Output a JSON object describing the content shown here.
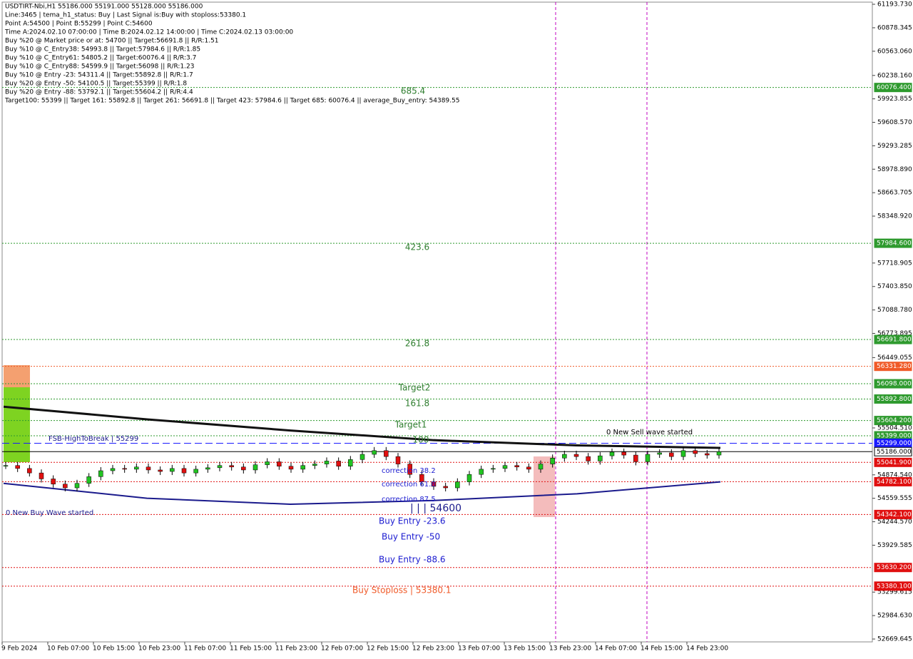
{
  "header": {
    "lines": [
      "USDTIRT-Nbi,H1   55186.000  55191.000  55128.000  55186.000",
      "Line:3465  | tema_h1_status: Buy  | Last Signal is:Buy with stoploss:53380.1",
      "Point A:54500  | Point B:55299  | Point C:54600",
      "Time A:2024.02.10 07:00:00  | Time B:2024.02.12 14:00:00  | Time C:2024.02.13 03:00:00",
      "Buy %20 @ Market price or at: 54700  || Target:56691.8  || R/R:1.51",
      "Buy %10 @ C_Entry38: 54993.8  || Target:57984.6  || R/R:1.85",
      "Buy %10 @ C_Entry61: 54805.2  || Target:60076.4  || R/R:3.7",
      "Buy %10 @ C_Entry88: 54599.9  || Target:56098  || R/R:1.23",
      "Buy %10 @ Entry -23: 54311.4  || Target:55892.8  || R/R:1.7",
      "Buy %20 @ Entry -50: 54100.5  || Target:55399  || R/R:1.8",
      "Buy %20 @ Entry -88: 53792.1  || Target:55604.2  || R/R:4.4",
      "Target100: 55399  || Target 161: 55892.8  || Target 261: 56691.8  || Target 423: 57984.6  || Target 685: 60076.4  || average_Buy_entry: 54389.55"
    ]
  },
  "chart_data": {
    "type": "candlestick",
    "closes": [
      55000,
      54960,
      54900,
      54820,
      54750,
      54700,
      54760,
      54850,
      54930,
      54960,
      54950,
      54980,
      54940,
      54920,
      54960,
      54900,
      54950,
      54970,
      55000,
      54980,
      54940,
      55010,
      55050,
      54990,
      54950,
      55000,
      55020,
      55060,
      54990,
      55080,
      55150,
      55200,
      55120,
      55020,
      54880,
      54780,
      54720,
      54700,
      54780,
      54880,
      54950,
      54960,
      55000,
      54980,
      54950,
      55020,
      55100,
      55150,
      55120,
      55060,
      55130,
      55180,
      55140,
      55050,
      55150,
      55170,
      55120,
      55200,
      55160,
      55140,
      55186
    ],
    "ma_black": [
      55790,
      55620,
      55470,
      55340,
      55270,
      55237
    ],
    "ma_blue": [
      54760,
      54560,
      54480,
      54530,
      54620,
      54780
    ],
    "ylim": [
      52631.3,
      61251.2
    ],
    "yticks": [
      {
        "value": 61193.73,
        "label": "61193.730"
      },
      {
        "value": 60878.345,
        "label": "60878.345"
      },
      {
        "value": 60563.06,
        "label": "60563.060"
      },
      {
        "value": 60238.16,
        "label": "60238.160"
      },
      {
        "value": 59923.855,
        "label": "59923.855"
      },
      {
        "value": 59608.57,
        "label": "59608.570"
      },
      {
        "value": 59293.285,
        "label": "59293.285"
      },
      {
        "value": 58978.89,
        "label": "58978.890"
      },
      {
        "value": 58663.705,
        "label": "58663.705"
      },
      {
        "value": 58348.92,
        "label": "58348.920"
      },
      {
        "value": 57718.905,
        "label": "57718.905"
      },
      {
        "value": 57403.85,
        "label": "57403.850"
      },
      {
        "value": 57088.78,
        "label": "57088.780"
      },
      {
        "value": 56773.895,
        "label": "56773.895"
      },
      {
        "value": 56449.055,
        "label": "56449.055"
      },
      {
        "value": 55504.51,
        "label": "55504.510"
      },
      {
        "value": 54874.54,
        "label": "54874.540"
      },
      {
        "value": 54559.555,
        "label": "54559.555"
      },
      {
        "value": 54244.57,
        "label": "54244.570"
      },
      {
        "value": 53929.585,
        "label": "53929.585"
      },
      {
        "value": 53299.615,
        "label": "53299.615"
      },
      {
        "value": 52984.63,
        "label": "52984.630"
      },
      {
        "value": 52669.645,
        "label": "52669.645"
      }
    ],
    "levels": [
      {
        "value": 60076.4,
        "label": "60076.400",
        "color": "#2e9a2e"
      },
      {
        "value": 57984.6,
        "label": "57984.600",
        "color": "#2e9a2e"
      },
      {
        "value": 56691.8,
        "label": "56691.800",
        "color": "#2e9a2e"
      },
      {
        "value": 56331.28,
        "label": "56331.280",
        "color": "#f05a28"
      },
      {
        "value": 56098,
        "label": "56098.000",
        "color": "#2e9a2e"
      },
      {
        "value": 55892.8,
        "label": "55892.800",
        "color": "#2e9a2e"
      },
      {
        "value": 55604.2,
        "label": "55604.200",
        "color": "#2e9a2e"
      },
      {
        "value": 55399,
        "label": "55399.000",
        "color": "#2e9a2e"
      },
      {
        "value": 55299,
        "label": "55299.000",
        "color": "#1a1aff"
      },
      {
        "value": 55186,
        "label": "55186.000",
        "color": "#000000"
      },
      {
        "value": 55041.9,
        "label": "55041.900",
        "color": "#e01010"
      },
      {
        "value": 54782.1,
        "label": "54782.100",
        "color": "#e01010"
      },
      {
        "value": 54342.1,
        "label": "54342.100",
        "color": "#e01010"
      },
      {
        "value": 53630.2,
        "label": "53630.200",
        "color": "#e01010"
      },
      {
        "value": 53380.1,
        "label": "53380.100",
        "color": "#e01010"
      }
    ],
    "x_labels": [
      "9 Feb 2024",
      "10 Feb 07:00",
      "10 Feb 15:00",
      "10 Feb 23:00",
      "11 Feb 07:00",
      "11 Feb 15:00",
      "11 Feb 23:00",
      "12 Feb 07:00",
      "12 Feb 15:00",
      "12 Feb 23:00",
      "13 Feb 07:00",
      "13 Feb 15:00",
      "13 Feb 23:00",
      "14 Feb 07:00",
      "14 Feb 15:00",
      "14 Feb 23:00"
    ],
    "annotations": [
      "685.4",
      "423.6",
      "261.8",
      "Target2",
      "161.8",
      "Target1",
      "100",
      "FSB-HighToBreak | 55299",
      "0 New Sell wave started",
      "0 New Buy Wave started",
      "correction 38.2",
      "correction 61.8",
      "correction 87.5",
      "| | | 54600",
      "Buy Entry -23.6",
      "Buy Entry -50",
      "Buy Entry -88.6",
      "Buy Stoploss | 53380.1"
    ]
  }
}
